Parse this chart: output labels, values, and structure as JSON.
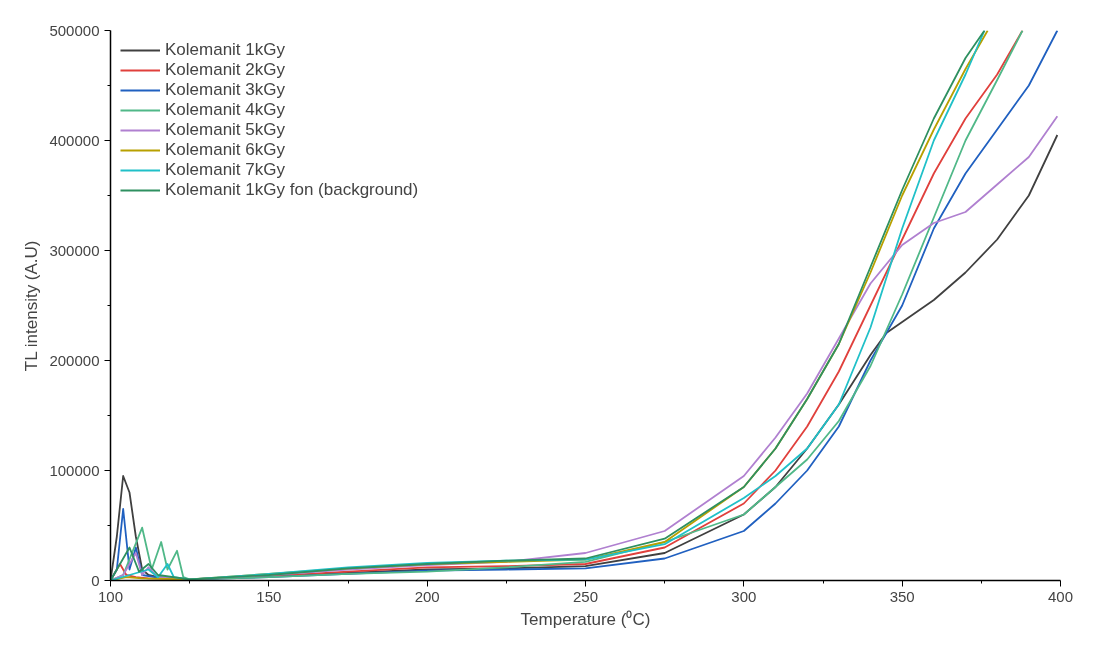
{
  "chart_data": {
    "type": "line",
    "xlabel": "Temperature (⁰C)",
    "ylabel": "TL intensity (A.U)",
    "xlim": [
      100,
      400
    ],
    "ylim": [
      0,
      500000
    ],
    "xticks": [
      100,
      150,
      200,
      250,
      300,
      350,
      400
    ],
    "yticks": [
      0,
      100000,
      200000,
      300000,
      400000,
      500000
    ],
    "grid": false,
    "legend": "top left",
    "marker": "none",
    "line_style": "solid",
    "series": [
      {
        "name": "Kolemanit 1kGy",
        "color": "#404040",
        "x": [
          100,
          102,
          104,
          106,
          108,
          110,
          112,
          115,
          120,
          125,
          150,
          175,
          200,
          225,
          250,
          275,
          300,
          310,
          320,
          330,
          340,
          345,
          350,
          360,
          370,
          380,
          390,
          399
        ],
        "values": [
          0,
          40000,
          95000,
          80000,
          40000,
          10000,
          5000,
          3000,
          2000,
          1000,
          4000,
          7000,
          10000,
          11000,
          13000,
          25000,
          60000,
          85000,
          120000,
          160000,
          205000,
          225000,
          235000,
          255000,
          280000,
          310000,
          350000,
          405000
        ]
      },
      {
        "name": "Kolemanit 2kGy",
        "color": "#e0403c",
        "x": [
          100,
          103,
          105,
          108,
          112,
          125,
          150,
          175,
          200,
          225,
          250,
          275,
          300,
          310,
          320,
          330,
          340,
          350,
          360,
          370,
          380,
          388
        ],
        "values": [
          0,
          15000,
          5000,
          3000,
          2000,
          1000,
          4000,
          8000,
          12000,
          13000,
          15000,
          30000,
          70000,
          100000,
          140000,
          190000,
          250000,
          310000,
          370000,
          420000,
          460000,
          500000
        ]
      },
      {
        "name": "Kolemanit 3kGy",
        "color": "#2060c0",
        "x": [
          100,
          102,
          104,
          106,
          108,
          110,
          114,
          125,
          150,
          175,
          200,
          225,
          250,
          275,
          300,
          310,
          320,
          330,
          340,
          350,
          360,
          370,
          380,
          390,
          399
        ],
        "values": [
          0,
          10000,
          65000,
          10000,
          30000,
          5000,
          3000,
          1000,
          3000,
          6000,
          9000,
          10000,
          11000,
          20000,
          45000,
          70000,
          100000,
          140000,
          200000,
          250000,
          320000,
          370000,
          410000,
          450000,
          500000
        ]
      },
      {
        "name": "Kolemanit 4kGy",
        "color": "#50b888",
        "x": [
          100,
          104,
          110,
          113,
          116,
          118,
          121,
          123,
          125,
          150,
          175,
          200,
          225,
          250,
          275,
          300,
          310,
          320,
          330,
          340,
          350,
          360,
          370,
          380,
          388
        ],
        "values": [
          0,
          5000,
          48000,
          10000,
          35000,
          10000,
          27000,
          3000,
          1000,
          3000,
          6000,
          8000,
          12000,
          17000,
          35000,
          60000,
          85000,
          110000,
          145000,
          195000,
          260000,
          330000,
          400000,
          455000,
          500000
        ]
      },
      {
        "name": "Kolemanit 5kGy",
        "color": "#b080d0",
        "x": [
          100,
          104,
          108,
          110,
          112,
          115,
          125,
          150,
          175,
          200,
          225,
          250,
          275,
          300,
          310,
          320,
          330,
          340,
          350,
          360,
          370,
          380,
          390,
          399
        ],
        "values": [
          0,
          5000,
          25000,
          5000,
          12000,
          3000,
          1000,
          5000,
          10000,
          14000,
          17000,
          25000,
          45000,
          95000,
          130000,
          170000,
          220000,
          270000,
          305000,
          325000,
          335000,
          360000,
          385000,
          422000
        ]
      },
      {
        "name": "Kolemanit 6kGy",
        "color": "#b8a000",
        "x": [
          100,
          105,
          110,
          125,
          150,
          175,
          200,
          225,
          250,
          275,
          300,
          310,
          320,
          330,
          340,
          350,
          360,
          370,
          377
        ],
        "values": [
          0,
          3000,
          2000,
          1000,
          6000,
          11000,
          15000,
          17000,
          19000,
          35000,
          85000,
          120000,
          165000,
          215000,
          280000,
          350000,
          410000,
          465000,
          500000
        ]
      },
      {
        "name": "Kolemanit 7kGy",
        "color": "#20c0c8",
        "x": [
          100,
          106,
          112,
          115,
          118,
          120,
          125,
          150,
          175,
          200,
          225,
          250,
          275,
          300,
          310,
          320,
          330,
          340,
          350,
          360,
          370,
          376
        ],
        "values": [
          0,
          5000,
          10000,
          3000,
          15000,
          3000,
          1000,
          6000,
          12000,
          16000,
          18000,
          19000,
          33000,
          75000,
          95000,
          120000,
          160000,
          230000,
          320000,
          400000,
          460000,
          500000
        ]
      },
      {
        "name": "Kolemanit 1kGy fon (background)",
        "color": "#2e9060",
        "x": [
          100,
          106,
          109,
          112,
          115,
          125,
          150,
          175,
          200,
          225,
          250,
          275,
          300,
          310,
          320,
          330,
          340,
          350,
          360,
          370,
          376
        ],
        "values": [
          0,
          30000,
          8000,
          15000,
          5000,
          1000,
          5000,
          11000,
          15000,
          18000,
          20000,
          38000,
          85000,
          120000,
          165000,
          215000,
          285000,
          355000,
          420000,
          475000,
          500000
        ]
      }
    ]
  }
}
